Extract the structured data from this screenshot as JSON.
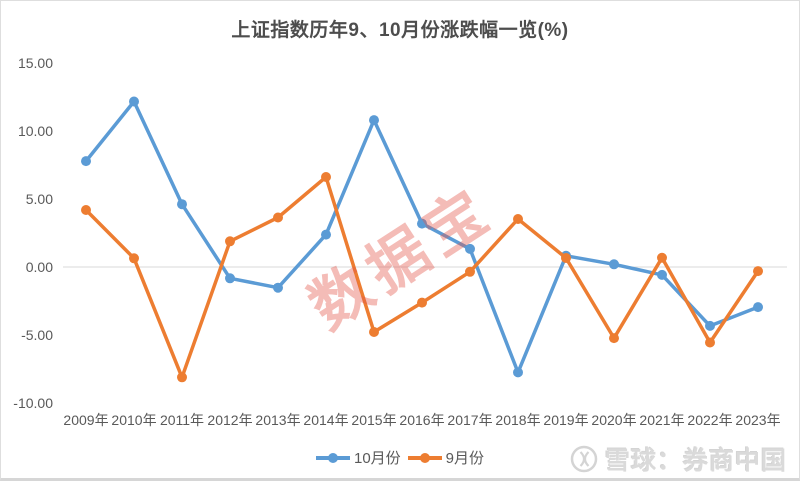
{
  "title": "上证指数历年9、10月份涨跌幅一览(%)",
  "watermark": {
    "text": "数据宝",
    "color": "#e4584a"
  },
  "footer": {
    "brand_text": "雪球：券商中国",
    "icon": "xueqiu-snowball-icon"
  },
  "chart_data": {
    "type": "line",
    "title": "上证指数历年9、10月份涨跌幅一览(%)",
    "categories": [
      "2009年",
      "2010年",
      "2011年",
      "2012年",
      "2013年",
      "2014年",
      "2015年",
      "2016年",
      "2017年",
      "2018年",
      "2019年",
      "2020年",
      "2021年",
      "2022年",
      "2023年"
    ],
    "series": [
      {
        "name": "10月份",
        "color": "#5B9BD5",
        "values": [
          7.79,
          12.17,
          4.62,
          -0.83,
          -1.52,
          2.38,
          10.8,
          3.19,
          1.33,
          -7.75,
          0.82,
          0.2,
          -0.58,
          -4.33,
          -2.95
        ]
      },
      {
        "name": "9月份",
        "color": "#ED7D31",
        "values": [
          4.19,
          0.64,
          -8.11,
          1.89,
          3.64,
          6.62,
          -4.78,
          -2.62,
          -0.35,
          3.53,
          0.66,
          -5.23,
          0.68,
          -5.55,
          -0.3
        ]
      }
    ],
    "y_ticks": [
      "15.00",
      "10.00",
      "5.00",
      "0.00",
      "-5.00",
      "-10.00"
    ],
    "ylim": [
      -10,
      15
    ],
    "xlabel": "",
    "ylabel": "",
    "grid": "zero-line-only",
    "gridline_color": "#d9d9d9",
    "legend_position": "bottom"
  }
}
